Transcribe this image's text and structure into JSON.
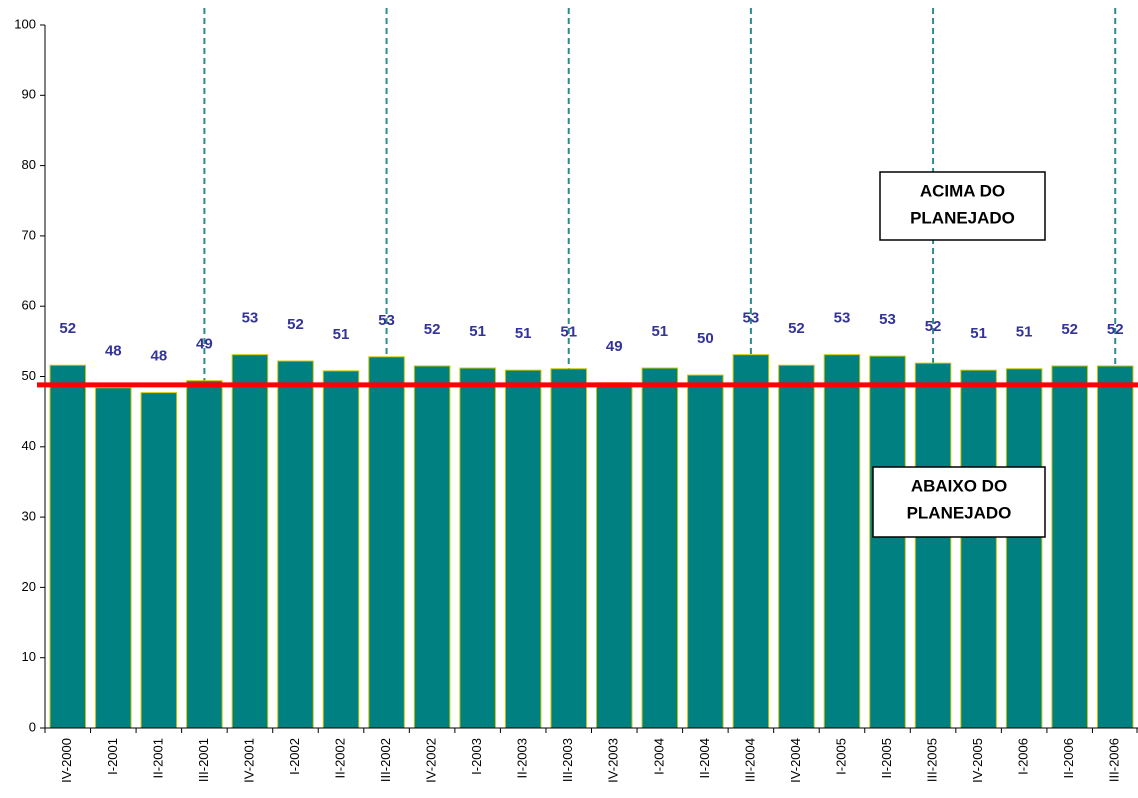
{
  "chart_data": {
    "type": "bar",
    "categories": [
      "IV-2000",
      "I-2001",
      "II-2001",
      "III-2001",
      "IV-2001",
      "I-2002",
      "II-2002",
      "III-2002",
      "IV-2002",
      "I-2003",
      "II-2003",
      "III-2003",
      "IV-2003",
      "I-2004",
      "II-2004",
      "III-2004",
      "IV-2004",
      "I-2005",
      "II-2005",
      "III-2005",
      "IV-2005",
      "I-2006",
      "II-2006",
      "III-2006"
    ],
    "values": [
      51.6,
      48.4,
      47.7,
      49.4,
      53.1,
      52.2,
      50.8,
      52.8,
      51.5,
      51.2,
      50.9,
      51.1,
      49.1,
      51.2,
      50.2,
      53.1,
      51.6,
      53.1,
      52.9,
      51.9,
      50.9,
      51.1,
      51.5,
      51.5
    ],
    "value_labels": [
      "52",
      "48",
      "48",
      "49",
      "53",
      "52",
      "51",
      "53",
      "52",
      "51",
      "51",
      "51",
      "49",
      "51",
      "50",
      "53",
      "52",
      "53",
      "53",
      "52",
      "51",
      "51",
      "52",
      "52"
    ],
    "color": "#008080",
    "edge_color": "#c8c800",
    "label_color": "#333399",
    "ylim": [
      0,
      100
    ],
    "yticks": [
      0,
      10,
      20,
      30,
      40,
      50,
      60,
      70,
      80,
      90,
      100
    ],
    "reference_line": 48.8,
    "reference_color": "#ff0000",
    "divider_indices": [
      3,
      7,
      11,
      15,
      19,
      23
    ],
    "divider_color": "#2e8b8b",
    "annotations": [
      {
        "lines": [
          "ACIMA DO",
          "PLANEJADO"
        ]
      },
      {
        "lines": [
          "ABAIXO DO",
          "PLANEJADO"
        ]
      }
    ]
  }
}
